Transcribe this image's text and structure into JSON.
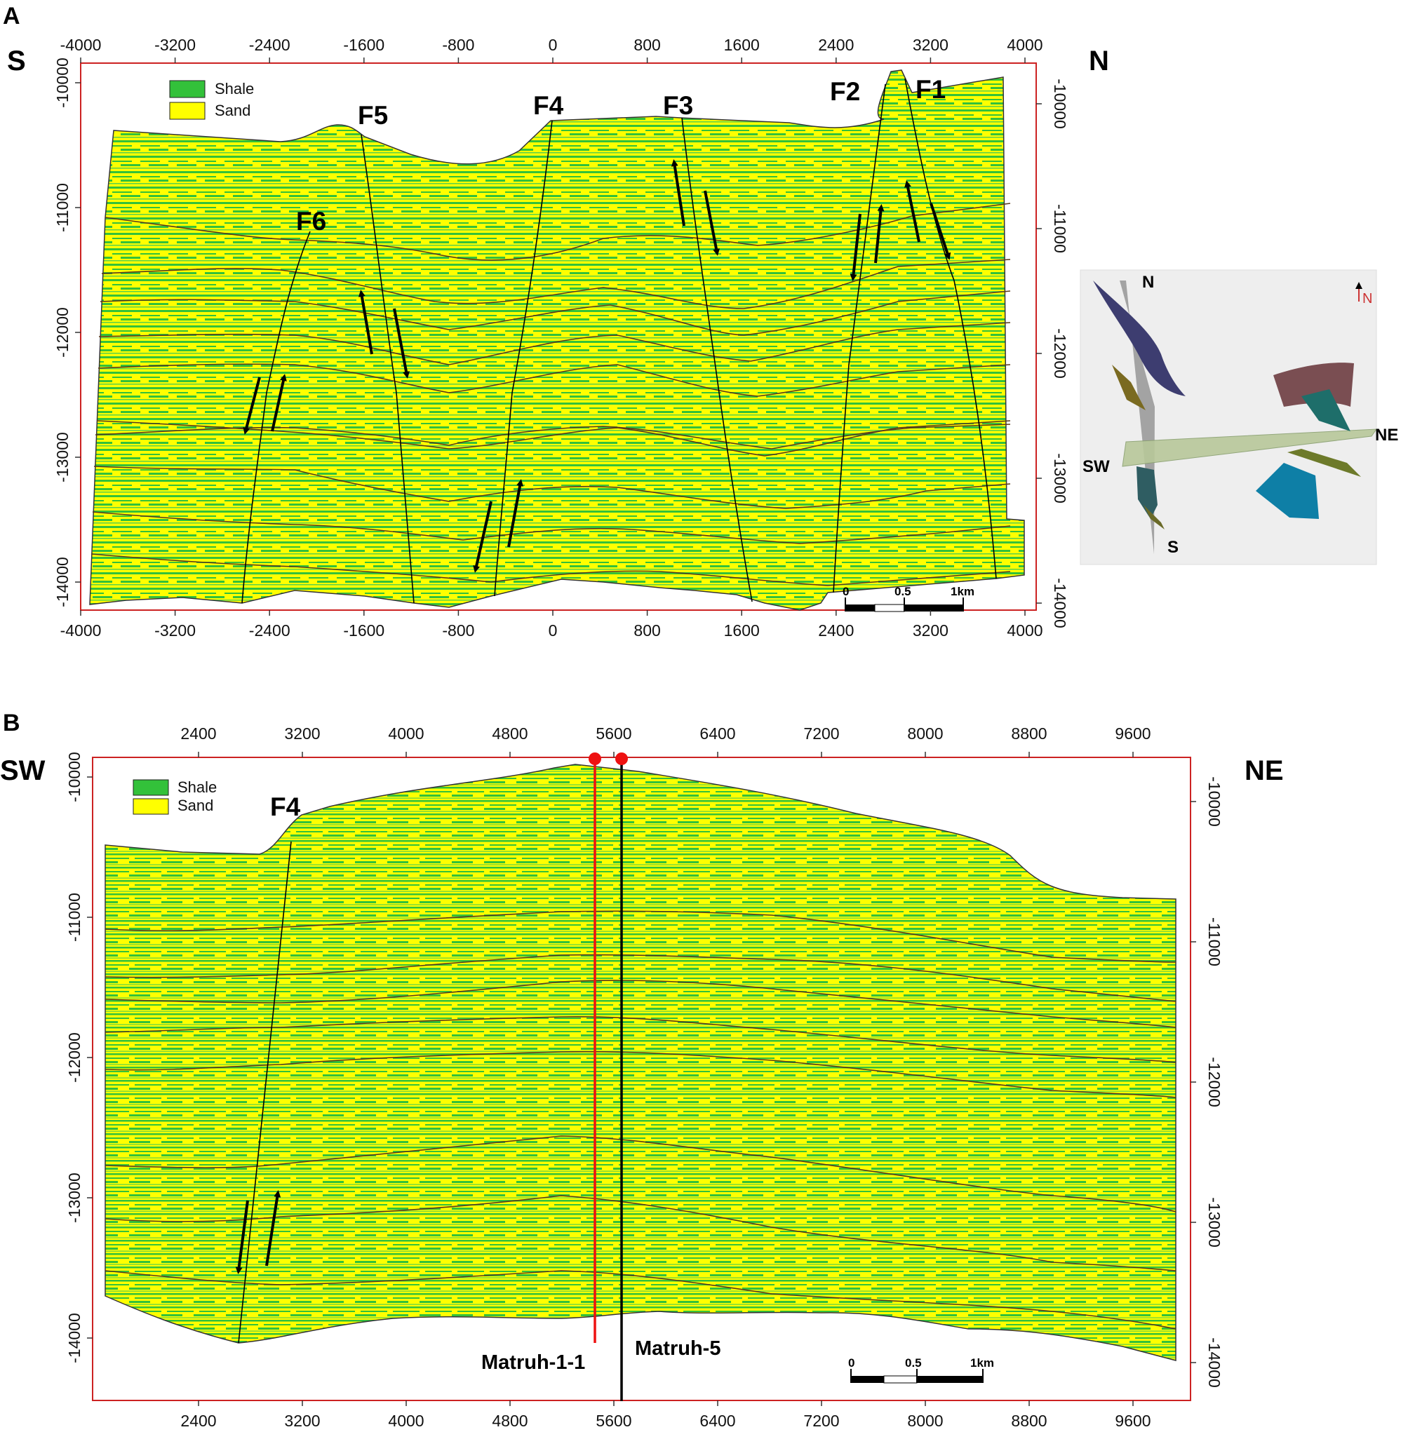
{
  "panel_a": {
    "panel_letter": "A",
    "left_dir": "S",
    "right_dir": "N",
    "x_ticks": [
      "-4000",
      "-3200",
      "-2400",
      "-1600",
      "-800",
      "0",
      "800",
      "1600",
      "2400",
      "3200",
      "4000"
    ],
    "y_ticks": [
      "-10000",
      "-11000",
      "-12000",
      "-13000",
      "-14000"
    ],
    "legend": [
      {
        "label": "Shale",
        "color": "#33c13a"
      },
      {
        "label": "Sand",
        "color": "#ffff00"
      }
    ],
    "faults": [
      "F1",
      "F2",
      "F3",
      "F4",
      "F5",
      "F6"
    ],
    "scale_bar": [
      "0",
      "0.5",
      "1km"
    ]
  },
  "inset_3d": {
    "labels": [
      "N",
      "NE",
      "SW",
      "S"
    ],
    "north_arrow": "N"
  },
  "panel_b": {
    "panel_letter": "B",
    "left_dir": "SW",
    "right_dir": "NE",
    "x_ticks": [
      "2400",
      "3200",
      "4000",
      "4800",
      "5600",
      "6400",
      "7200",
      "8000",
      "8800",
      "9600"
    ],
    "y_ticks": [
      "-10000",
      "-11000",
      "-12000",
      "-13000",
      "-14000"
    ],
    "legend": [
      {
        "label": "Shale",
        "color": "#33c13a"
      },
      {
        "label": "Sand",
        "color": "#ffff00"
      }
    ],
    "faults": [
      "F4"
    ],
    "wells": [
      {
        "name": "Matruh-1-1",
        "color": "#ee1111"
      },
      {
        "name": "Matruh-5",
        "color": "#000000"
      }
    ],
    "scale_bar": [
      "0",
      "0.5",
      "1km"
    ]
  },
  "colors": {
    "shale": "#33c13a",
    "sand": "#ffff00",
    "frame": "#cc2222",
    "horizon": "#5a3a1a",
    "inset_bg": "#eeeeee"
  }
}
